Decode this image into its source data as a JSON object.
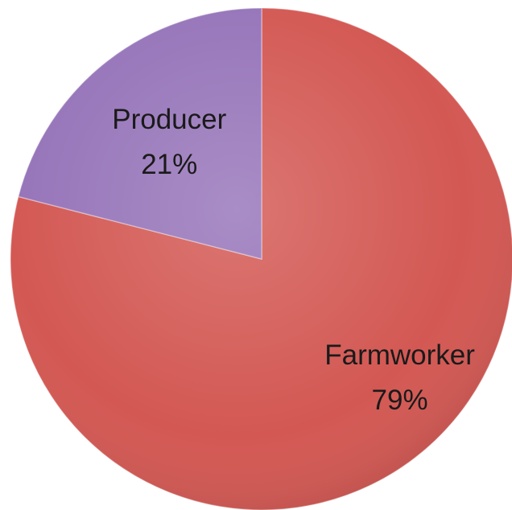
{
  "chart_data": {
    "type": "pie",
    "start_angle_deg": 0,
    "direction": "clockwise",
    "slices": [
      {
        "label": "Farmworker",
        "value": 79,
        "value_label": "79%",
        "color": "#d35853"
      },
      {
        "label": "Producer",
        "value": 21,
        "value_label": "21%",
        "color": "#9674b9"
      }
    ]
  }
}
